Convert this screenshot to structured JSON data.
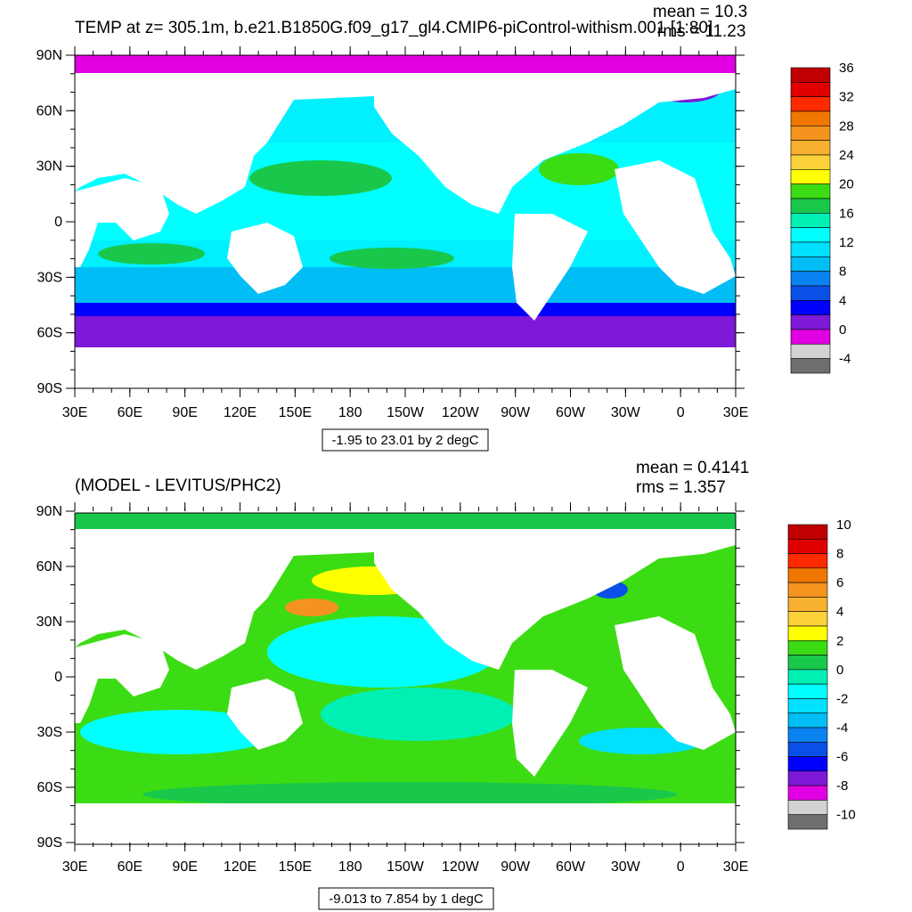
{
  "panels": [
    {
      "title": "TEMP at z= 305.1m, b.e21.B1850G.f09_g17_gl4.CMIP6-piControl-withism.001 [1:80]",
      "mean": "mean = 10.3",
      "rms": "rms = 11.23",
      "info": "-1.95 to 23.01 by 2 degC",
      "lat_ticks": [
        "90N",
        "60N",
        "30N",
        "0",
        "30S",
        "60S",
        "90S"
      ],
      "lon_ticks": [
        "30E",
        "60E",
        "90E",
        "120E",
        "150E",
        "180",
        "150W",
        "120W",
        "90W",
        "60W",
        "30W",
        "0",
        "30E"
      ],
      "colorbar": {
        "labels": [
          "36",
          "32",
          "28",
          "24",
          "20",
          "16",
          "12",
          "8",
          "4",
          "0",
          "-4"
        ],
        "colors": [
          "#c00000",
          "#e00000",
          "#ff2a00",
          "#f07800",
          "#f4941e",
          "#f8b030",
          "#fcd23a",
          "#ffff00",
          "#3cdc14",
          "#19c84b",
          "#00f0b4",
          "#00ffff",
          "#00e1ff",
          "#00bef5",
          "#0a82f0",
          "#0a50e6",
          "#0000ff",
          "#7d19d7",
          "#e100e1",
          "#d2d2d2",
          "#6e6e6e"
        ]
      }
    },
    {
      "title": "(MODEL - LEVITUS/PHC2)",
      "mean": "mean = 0.4141",
      "rms": "rms = 1.357",
      "info": "-9.013 to 7.854 by 1 degC",
      "lat_ticks": [
        "90N",
        "60N",
        "30N",
        "0",
        "30S",
        "60S",
        "90S"
      ],
      "lon_ticks": [
        "30E",
        "60E",
        "90E",
        "120E",
        "150E",
        "180",
        "150W",
        "120W",
        "90W",
        "60W",
        "30W",
        "0",
        "30E"
      ],
      "colorbar": {
        "labels": [
          "10",
          "8",
          "6",
          "4",
          "2",
          "0",
          "-2",
          "-4",
          "-6",
          "-8",
          "-10"
        ],
        "colors": [
          "#c00000",
          "#e00000",
          "#ff2a00",
          "#f07800",
          "#f4941e",
          "#f8b030",
          "#fcd23a",
          "#ffff00",
          "#3cdc14",
          "#19c84b",
          "#00f0b4",
          "#00ffff",
          "#00e1ff",
          "#00bef5",
          "#0a82f0",
          "#0a50e6",
          "#0000ff",
          "#7d19d7",
          "#e100e1",
          "#d2d2d2",
          "#6e6e6e"
        ]
      }
    }
  ]
}
